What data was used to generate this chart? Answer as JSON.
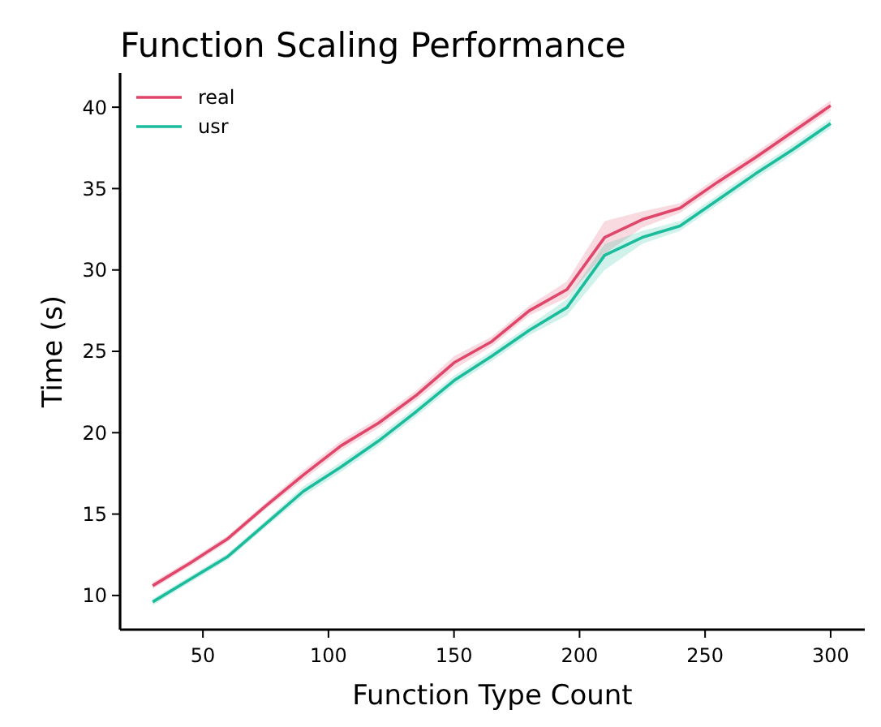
{
  "chart_data": {
    "type": "line",
    "title": "Function Scaling Performance",
    "xlabel": "Function Type Count",
    "ylabel": "Time (s)",
    "x": [
      30,
      45,
      60,
      75,
      90,
      105,
      120,
      135,
      150,
      165,
      180,
      195,
      210,
      225,
      240,
      255,
      270,
      285,
      300
    ],
    "xlim": [
      17,
      313.6
    ],
    "xticks": [
      50,
      100,
      150,
      200,
      250,
      300
    ],
    "ylim": [
      7.9,
      42.1
    ],
    "yticks": [
      10,
      15,
      20,
      25,
      30,
      35,
      40
    ],
    "grid": false,
    "legend": "top left",
    "line_style": "solid",
    "marker": "none",
    "series": [
      {
        "name": "real",
        "color": "#e0456a",
        "values": [
          10.6,
          12.0,
          13.5,
          15.5,
          17.4,
          19.2,
          20.6,
          22.3,
          24.3,
          25.6,
          27.5,
          28.8,
          32.0,
          33.1,
          33.8,
          35.4,
          36.9,
          38.5,
          40.1
        ],
        "lower": [
          10.4,
          11.8,
          13.3,
          15.3,
          17.1,
          18.9,
          20.3,
          22.0,
          23.9,
          25.3,
          27.2,
          28.3,
          31.0,
          32.6,
          33.5,
          35.1,
          36.6,
          38.2,
          39.8
        ],
        "upper": [
          10.8,
          12.2,
          13.7,
          15.7,
          17.7,
          19.5,
          20.9,
          22.6,
          24.7,
          25.9,
          27.8,
          29.3,
          33.0,
          33.6,
          34.1,
          35.7,
          37.2,
          38.8,
          40.4
        ]
      },
      {
        "name": "usr",
        "color": "#1abc9c",
        "values": [
          9.6,
          11.0,
          12.4,
          14.4,
          16.4,
          17.9,
          19.5,
          21.3,
          23.2,
          24.7,
          26.3,
          27.7,
          30.9,
          32.0,
          32.7,
          34.3,
          35.9,
          37.4,
          39.0
        ],
        "lower": [
          9.4,
          10.8,
          12.2,
          14.2,
          16.1,
          17.6,
          19.2,
          21.0,
          22.9,
          24.4,
          26.0,
          27.2,
          30.0,
          31.6,
          32.4,
          34.0,
          35.6,
          37.1,
          38.7
        ],
        "upper": [
          9.8,
          11.2,
          12.6,
          14.6,
          16.7,
          18.2,
          19.8,
          21.6,
          23.5,
          25.0,
          26.6,
          28.2,
          31.6,
          32.4,
          33.0,
          34.6,
          36.2,
          37.7,
          39.3
        ]
      }
    ]
  }
}
